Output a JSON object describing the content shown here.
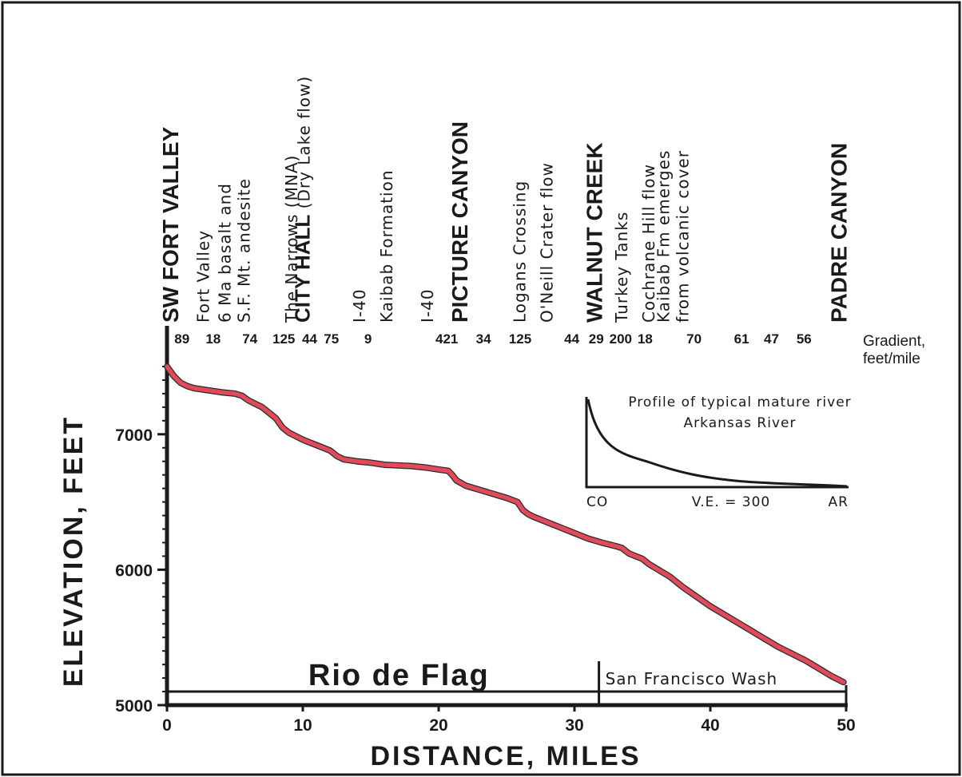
{
  "chart_data": {
    "type": "line",
    "xlabel": "DISTANCE,  MILES",
    "ylabel": "ELEVATION, FEET",
    "xlim": [
      0,
      50
    ],
    "ylim": [
      5000,
      7500
    ],
    "x_ticks": [
      0,
      10,
      20,
      30,
      40,
      50
    ],
    "y_tick_labels": [
      5000,
      6000,
      7000
    ],
    "y_minor_step": 100,
    "grid": false,
    "line_color": "#e04a5a",
    "series": [
      {
        "x": [
          0,
          0.5,
          1,
          1.5,
          2,
          3,
          4,
          5,
          5.5,
          6,
          7,
          8,
          8.5,
          9,
          10,
          11,
          12,
          12.5,
          13,
          14,
          15,
          16,
          17,
          18,
          19,
          20,
          20.7,
          21,
          21.3,
          22,
          23,
          24,
          25,
          25.8,
          26.2,
          26.6,
          27,
          28,
          29,
          30,
          31,
          32,
          33,
          33.5,
          34,
          35,
          35.5,
          36,
          37,
          38,
          39,
          40,
          41,
          42,
          43,
          44,
          45,
          46,
          47,
          48,
          49,
          49.8
        ],
        "y": [
          7500,
          7430,
          7380,
          7355,
          7340,
          7325,
          7310,
          7300,
          7285,
          7250,
          7200,
          7120,
          7050,
          7010,
          6960,
          6920,
          6880,
          6840,
          6815,
          6800,
          6790,
          6775,
          6770,
          6765,
          6755,
          6740,
          6730,
          6700,
          6660,
          6620,
          6590,
          6560,
          6530,
          6500,
          6440,
          6410,
          6390,
          6350,
          6310,
          6270,
          6230,
          6200,
          6175,
          6160,
          6120,
          6080,
          6040,
          6010,
          5950,
          5870,
          5800,
          5730,
          5670,
          5610,
          5550,
          5490,
          5430,
          5380,
          5330,
          5270,
          5210,
          5170
        ]
      }
    ],
    "locations": [
      {
        "lines": [
          "SW FORT VALLEY"
        ],
        "bold": true,
        "x": 0
      },
      {
        "lines": [
          "Fort Valley"
        ],
        "bold": false,
        "x": 2.5
      },
      {
        "lines": [
          "6 Ma basalt and",
          "S.F. Mt. andesite"
        ],
        "bold": false,
        "x": 5.5
      },
      {
        "lines": [
          "The Narrows (MNA)"
        ],
        "bold": false,
        "x": 9
      },
      {
        "lines": [
          "CITY HALL",
          " (Dry Lake flow)"
        ],
        "bold": false,
        "mixed": true,
        "x": 11.2
      },
      {
        "lines": [
          "I-40"
        ],
        "bold": false,
        "x": 14
      },
      {
        "lines": [
          "Kaibab  Formation"
        ],
        "bold": false,
        "x": 16
      },
      {
        "lines": [
          "I-40"
        ],
        "bold": false,
        "x": 19
      },
      {
        "lines": [
          "PICTURE CANYON"
        ],
        "bold": true,
        "x": 21.3
      },
      {
        "lines": [
          "Logans Crossing"
        ],
        "bold": false,
        "x": 25.8
      },
      {
        "lines": [
          "O'Neill Crater flow"
        ],
        "bold": false,
        "x": 27.8
      },
      {
        "lines": [
          "WALNUT CREEK"
        ],
        "bold": true,
        "x": 31.2
      },
      {
        "lines": [
          "Turkey Tanks"
        ],
        "bold": false,
        "x": 33.3
      },
      {
        "lines": [
          "Cochrane Hill flow"
        ],
        "bold": false,
        "x": 35.3
      },
      {
        "lines": [
          "Kaibab Fm emerges",
          "from volcanic cover"
        ],
        "bold": false,
        "x": 37.8
      },
      {
        "lines": [
          "PADRE CANYON"
        ],
        "bold": true,
        "x": 49.2
      }
    ],
    "gradients": [
      {
        "value": "89",
        "x": 1.1
      },
      {
        "value": "18",
        "x": 3.4
      },
      {
        "value": "74",
        "x": 6.1
      },
      {
        "value": "125",
        "x": 8.6
      },
      {
        "value": "44",
        "x": 10.5
      },
      {
        "value": "75",
        "x": 12.1
      },
      {
        "value": "9",
        "x": 14.8
      },
      {
        "value": "421",
        "x": 20.6
      },
      {
        "value": "34",
        "x": 23.3
      },
      {
        "value": "125",
        "x": 26
      },
      {
        "value": "44",
        "x": 29.8
      },
      {
        "value": "29",
        "x": 31.6
      },
      {
        "value": "200",
        "x": 33.4
      },
      {
        "value": "18",
        "x": 35.2
      },
      {
        "value": "70",
        "x": 38.8
      },
      {
        "value": "61",
        "x": 42.3
      },
      {
        "value": "47",
        "x": 44.5
      },
      {
        "value": "56",
        "x": 46.9
      }
    ],
    "gradient_label": [
      "Gradient,",
      "feet/mile"
    ],
    "reaches": [
      {
        "name": "Rio de Flag",
        "from": 0,
        "to": 31.8,
        "style": "big"
      },
      {
        "name": "San Francisco Wash",
        "from": 31.8,
        "to": 50,
        "style": "small"
      }
    ],
    "inset": {
      "title": "Profile of typical mature river",
      "subtitle": "Arkansas River",
      "left_label": "CO",
      "center_label": "V.E. = 300",
      "right_label": "AR"
    }
  }
}
